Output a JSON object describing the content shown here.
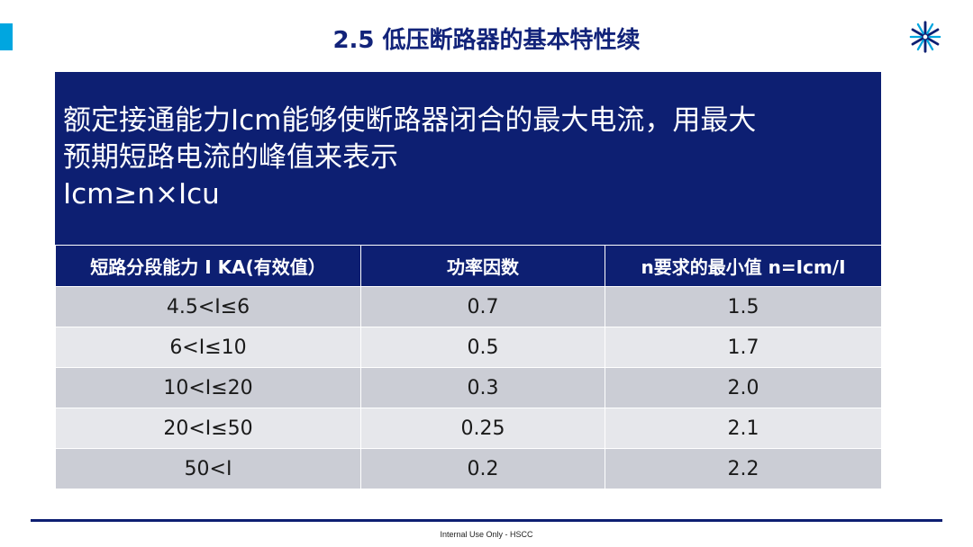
{
  "slide": {
    "title": "2.5 低压断路器的基本特性续",
    "footer": "Internal Use Only - HSCC",
    "logo_icon": "snowflake-logo-icon"
  },
  "description": {
    "lines": [
      "额定接通能力Icm能够使断路器闭合的最大电流，用最大",
      "预期短路电流的峰值来表示",
      "Icm≥n×Icu"
    ]
  },
  "table": {
    "headers": [
      "短路分段能力 I KA(有效值）",
      "功率因数",
      "n要求的最小值 n=Icm/I"
    ],
    "rows": [
      [
        "4.5<I≤6",
        "0.7",
        "1.5"
      ],
      [
        "6<I≤10",
        "0.5",
        "1.7"
      ],
      [
        "10<I≤20",
        "0.3",
        "2.0"
      ],
      [
        "20<I≤50",
        "0.25",
        "2.1"
      ],
      [
        "50<I",
        "0.2",
        "2.2"
      ]
    ]
  },
  "colors": {
    "accent": "#00a6e0",
    "primary": "#0d1f72",
    "title": "#12237a",
    "row_dark": "#cbcdd5",
    "row_light": "#e6e7eb"
  }
}
